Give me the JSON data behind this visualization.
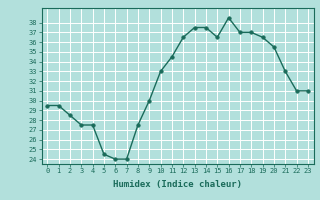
{
  "x": [
    0,
    1,
    2,
    3,
    4,
    5,
    6,
    7,
    8,
    9,
    10,
    11,
    12,
    13,
    14,
    15,
    16,
    17,
    18,
    19,
    20,
    21,
    22,
    23
  ],
  "y": [
    29.5,
    29.5,
    28.5,
    27.5,
    27.5,
    24.5,
    24.0,
    24.0,
    27.5,
    30.0,
    33.0,
    34.5,
    36.5,
    37.5,
    37.5,
    36.5,
    38.5,
    37.0,
    37.0,
    36.5,
    35.5,
    33.0,
    31.0,
    31.0
  ],
  "xlim": [
    -0.5,
    23.5
  ],
  "ylim": [
    23.5,
    39.5
  ],
  "yticks": [
    24,
    25,
    26,
    27,
    28,
    29,
    30,
    31,
    32,
    33,
    34,
    35,
    36,
    37,
    38
  ],
  "xticks": [
    0,
    1,
    2,
    3,
    4,
    5,
    6,
    7,
    8,
    9,
    10,
    11,
    12,
    13,
    14,
    15,
    16,
    17,
    18,
    19,
    20,
    21,
    22,
    23
  ],
  "xlabel": "Humidex (Indice chaleur)",
  "line_color": "#1a6b5a",
  "marker_color": "#1a6b5a",
  "bg_color": "#b2e0dc",
  "grid_color": "#ffffff"
}
